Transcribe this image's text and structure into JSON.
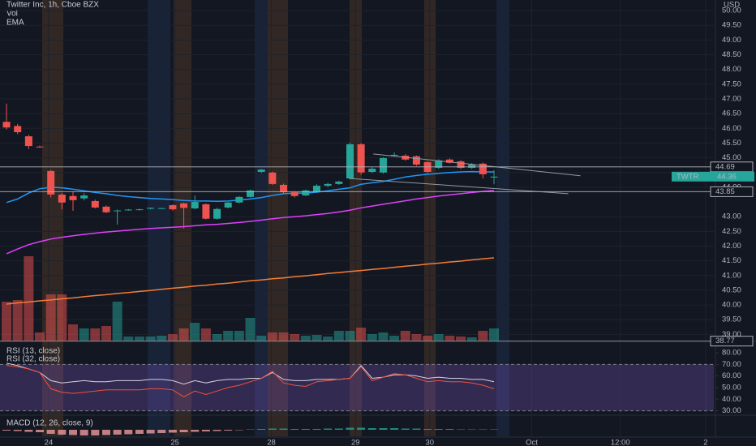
{
  "chart_data": {
    "type": "candlestick",
    "title": "Twitter Inc, 1h, Cboe BZX",
    "legend_items": [
      "Vol",
      "EMA"
    ],
    "currency": "USD",
    "up_color": "#26a69a",
    "down_color": "#ef5350",
    "categories": [
      null,
      null,
      null,
      null,
      null,
      null,
      null,
      null,
      null,
      null,
      null,
      null,
      null,
      null,
      null,
      null,
      null,
      null,
      null,
      null,
      null,
      null,
      null,
      null,
      null,
      null,
      null,
      null,
      null,
      null,
      null,
      null,
      null,
      null,
      null,
      null,
      null,
      null,
      null,
      null,
      null,
      null,
      null,
      null,
      null
    ],
    "open": [
      46.22,
      46.08,
      45.73,
      45.38,
      44.55,
      43.75,
      43.7,
      43.62,
      43.53,
      43.34,
      43.2,
      43.23,
      43.24,
      43.27,
      43.28,
      43.39,
      43.45,
      43.28,
      43.42,
      42.93,
      43.31,
      43.48,
      43.67,
      44.52,
      44.5,
      44.08,
      43.83,
      43.72,
      43.85,
      44.05,
      44.11,
      44.3,
      45.46,
      44.52,
      44.5,
      45.09,
      45.07,
      45.05,
      44.85,
      44.66,
      44.94,
      44.88,
      44.66,
      44.8,
      44.33
    ],
    "high": [
      46.84,
      46.15,
      45.78,
      45.42,
      44.6,
      43.8,
      43.85,
      43.8,
      43.58,
      43.38,
      43.24,
      43.26,
      43.27,
      43.31,
      43.3,
      43.42,
      43.48,
      43.72,
      43.45,
      43.3,
      43.5,
      43.7,
      43.92,
      44.62,
      44.53,
      44.12,
      43.86,
      43.92,
      44.1,
      44.15,
      44.22,
      45.52,
      45.5,
      44.68,
      45.02,
      45.18,
      45.12,
      45.08,
      44.88,
      44.95,
      44.98,
      44.92,
      44.82,
      44.84,
      44.58
    ],
    "low": [
      45.96,
      45.8,
      45.3,
      45.34,
      43.65,
      43.25,
      43.2,
      43.55,
      43.28,
      43.12,
      42.73,
      43.2,
      43.21,
      43.25,
      43.26,
      43.2,
      42.6,
      43.25,
      42.9,
      42.9,
      43.28,
      43.45,
      43.65,
      44.48,
      44.08,
      43.8,
      43.65,
      43.7,
      43.82,
      44.0,
      44.08,
      44.28,
      44.42,
      44.48,
      44.46,
      45.05,
      44.9,
      44.73,
      44.48,
      44.62,
      44.8,
      44.62,
      44.62,
      44.3,
      44.1
    ],
    "close": [
      46.03,
      45.87,
      45.4,
      45.36,
      43.75,
      43.48,
      43.56,
      43.72,
      43.31,
      43.15,
      43.21,
      43.24,
      43.25,
      43.3,
      43.29,
      43.25,
      43.3,
      43.5,
      42.93,
      43.26,
      43.48,
      43.67,
      43.89,
      44.6,
      44.11,
      43.83,
      43.7,
      43.89,
      44.05,
      44.11,
      44.19,
      45.46,
      44.5,
      44.63,
      44.99,
      45.1,
      44.94,
      44.77,
      44.52,
      44.91,
      44.83,
      44.66,
      44.77,
      44.44,
      44.36
    ],
    "volume": [
      48,
      50,
      104,
      10,
      57,
      57,
      20,
      15,
      15,
      18,
      48,
      5,
      5,
      5,
      6,
      8,
      15,
      22,
      15,
      8,
      12,
      12,
      28,
      6,
      10,
      10,
      8,
      6,
      7,
      5,
      12,
      12,
      16,
      8,
      10,
      6,
      12,
      8,
      6,
      8,
      6,
      5,
      4,
      12,
      15
    ],
    "lines": [
      {
        "color": "#2196f3",
        "values": [
          43.48,
          43.6,
          43.8,
          43.95,
          44.0,
          43.98,
          43.93,
          43.88,
          43.82,
          43.78,
          43.72,
          43.68,
          43.65,
          43.62,
          43.6,
          43.58,
          43.55,
          43.53,
          43.53,
          43.52,
          43.53,
          43.56,
          43.6,
          43.65,
          43.72,
          43.78,
          43.8,
          43.8,
          43.83,
          43.88,
          43.93,
          43.98,
          44.1,
          44.15,
          44.2,
          44.27,
          44.35,
          44.4,
          44.44,
          44.47,
          44.5,
          44.52,
          44.53,
          44.52,
          44.52
        ]
      },
      {
        "color": "#e040fb",
        "values": [
          41.74,
          41.9,
          42.05,
          42.15,
          42.24,
          42.3,
          42.35,
          42.4,
          42.44,
          42.48,
          42.51,
          42.54,
          42.57,
          42.6,
          42.62,
          42.64,
          42.66,
          42.69,
          42.72,
          42.74,
          42.77,
          42.8,
          42.84,
          42.88,
          42.93,
          42.97,
          43.0,
          43.03,
          43.07,
          43.11,
          43.16,
          43.22,
          43.3,
          43.36,
          43.42,
          43.48,
          43.54,
          43.6,
          43.65,
          43.7,
          43.74,
          43.78,
          43.82,
          43.86,
          43.89
        ]
      },
      {
        "color": "#f57c35",
        "values": [
          40.03,
          40.07,
          40.1,
          40.14,
          40.17,
          40.21,
          40.24,
          40.28,
          40.32,
          40.35,
          40.39,
          40.42,
          40.46,
          40.49,
          40.53,
          40.57,
          40.6,
          40.64,
          40.67,
          40.71,
          40.74,
          40.78,
          40.82,
          40.85,
          40.89,
          40.92,
          40.96,
          40.99,
          41.03,
          41.07,
          41.1,
          41.14,
          41.17,
          41.21,
          41.24,
          41.28,
          41.32,
          41.35,
          41.39,
          41.42,
          41.46,
          41.49,
          41.53,
          41.57,
          41.6
        ]
      }
    ],
    "trend_lines": [
      {
        "x": [
          33.1,
          51.8
        ],
        "y": [
          45.13,
          44.39
        ]
      },
      {
        "x": [
          30.9,
          50.7
        ],
        "y": [
          44.3,
          43.78
        ]
      }
    ],
    "price_lines": [
      44.69,
      43.85,
      38.77
    ],
    "symbol": "TWTR",
    "last_price": 44.36,
    "xlim": [
      -0.59,
      63.84
    ],
    "ylim": [
      38.79,
      50.36
    ],
    "yticks": [
      {
        "value": 39,
        "label": "39.00"
      },
      {
        "value": 39.5,
        "label": "39.50"
      },
      {
        "value": 40,
        "label": "40.00"
      },
      {
        "value": 40.5,
        "label": "40.50"
      },
      {
        "value": 41,
        "label": "41.00"
      },
      {
        "value": 41.5,
        "label": "41.50"
      },
      {
        "value": 42,
        "label": "42.00"
      },
      {
        "value": 42.5,
        "label": "42.50"
      },
      {
        "value": 43,
        "label": "43.00"
      },
      {
        "value": 44,
        "label": "44.00"
      },
      {
        "value": 44.5,
        "label": "44.50"
      },
      {
        "value": 45,
        "label": "45.00"
      },
      {
        "value": 45.5,
        "label": "45.50"
      },
      {
        "value": 46,
        "label": "46.00"
      },
      {
        "value": 46.5,
        "label": "46.50"
      },
      {
        "value": 47,
        "label": "47.00"
      },
      {
        "value": 47.5,
        "label": "47.50"
      },
      {
        "value": 48,
        "label": "48.00"
      },
      {
        "value": 48.5,
        "label": "48.50"
      },
      {
        "value": 49,
        "label": "49.00"
      },
      {
        "value": 49.5,
        "label": "49.50"
      },
      {
        "value": 50,
        "label": "50.00"
      }
    ],
    "xticks": [
      {
        "value": 3.8,
        "label": "24"
      },
      {
        "value": 15.2,
        "label": "25"
      },
      {
        "value": 23.9,
        "label": "28"
      },
      {
        "value": 31.5,
        "label": "29"
      },
      {
        "value": 38.2,
        "label": "30"
      },
      {
        "value": 47.4,
        "label": "Oct"
      },
      {
        "value": 55.4,
        "label": "12:00"
      },
      {
        "value": 63.1,
        "label": "2"
      }
    ],
    "grid": true,
    "rsi": {
      "labels": [
        "RSI (13, close)",
        "RSI (32, close)"
      ],
      "ylim": [
        26.2,
        87
      ],
      "band": [
        30,
        70
      ],
      "yticks": [
        {
          "value": 80,
          "label": "80.00"
        },
        {
          "value": 70,
          "label": "70.00"
        },
        {
          "value": 60,
          "label": "60.00"
        },
        {
          "value": 50,
          "label": "50.00"
        },
        {
          "value": 40,
          "label": "40.00"
        },
        {
          "value": 30,
          "label": "30.00"
        }
      ],
      "series": [
        {
          "color": "#d1d4dc",
          "values": [
            71,
            69,
            66,
            63,
            56,
            54,
            55,
            56,
            55,
            55,
            56,
            56,
            56,
            57,
            57,
            56,
            53,
            56,
            54,
            56,
            57,
            57,
            58,
            58,
            63,
            57,
            56,
            56,
            57,
            57,
            57,
            58,
            69,
            58,
            59,
            61,
            61,
            60,
            58,
            59,
            58,
            58,
            57,
            57,
            55
          ]
        },
        {
          "color": "#f0513c",
          "values": [
            69,
            68,
            66,
            63,
            49,
            46,
            45,
            46,
            47,
            48,
            48,
            48,
            48,
            49,
            49,
            48,
            42,
            47,
            44,
            47,
            50,
            52,
            55,
            58,
            64,
            54,
            52,
            51,
            55,
            56,
            57,
            58,
            68,
            56,
            59,
            62,
            61,
            58,
            55,
            56,
            55,
            55,
            54,
            52,
            49
          ]
        }
      ]
    },
    "macd": {
      "label": "MACD (12, 26, close, 9)",
      "histogram": [
        -0.02,
        -0.03,
        -0.05,
        -0.06,
        -0.1,
        -0.12,
        -0.13,
        -0.14,
        -0.14,
        -0.13,
        -0.12,
        -0.11,
        -0.1,
        -0.09,
        -0.08,
        -0.07,
        -0.06,
        -0.05,
        -0.04,
        -0.03,
        -0.02,
        -0.01,
        0.01,
        0.02,
        0.03,
        0.03,
        0.02,
        0.02,
        0.02,
        0.03,
        0.03,
        0.05,
        0.05,
        0.04,
        0.04,
        0.04,
        0.03,
        0.03,
        0.02,
        0.02,
        0.02,
        0.01,
        0.01,
        0.01,
        0.01
      ]
    }
  }
}
